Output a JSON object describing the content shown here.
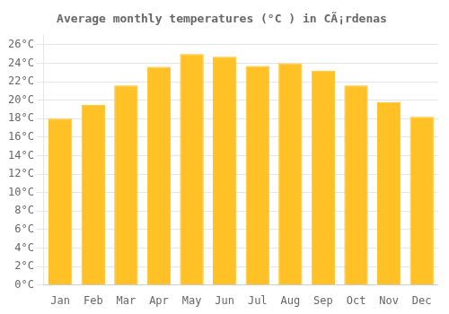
{
  "chart_data": {
    "type": "bar",
    "title": "Average monthly temperatures (°C ) in CÃ¡rdenas",
    "categories": [
      "Jan",
      "Feb",
      "Mar",
      "Apr",
      "May",
      "Jun",
      "Jul",
      "Aug",
      "Sep",
      "Oct",
      "Nov",
      "Dec"
    ],
    "values": [
      18.0,
      19.5,
      21.6,
      23.6,
      25.0,
      24.7,
      23.7,
      24.0,
      23.2,
      21.6,
      19.8,
      18.2
    ],
    "color": "#FFC125",
    "ylim": [
      0,
      27
    ],
    "yticks": [
      {
        "value": 0,
        "label": "0°C"
      },
      {
        "value": 2,
        "label": "2°C"
      },
      {
        "value": 4,
        "label": "4°C"
      },
      {
        "value": 6,
        "label": "6°C"
      },
      {
        "value": 8,
        "label": "8°C"
      },
      {
        "value": 10,
        "label": "10°C"
      },
      {
        "value": 12,
        "label": "12°C"
      },
      {
        "value": 14,
        "label": "14°C"
      },
      {
        "value": 16,
        "label": "16°C"
      },
      {
        "value": 18,
        "label": "18°C"
      },
      {
        "value": 20,
        "label": "20°C"
      },
      {
        "value": 22,
        "label": "22°C"
      },
      {
        "value": 24,
        "label": "24°C"
      },
      {
        "value": 26,
        "label": "26°C"
      }
    ],
    "grid": true
  }
}
